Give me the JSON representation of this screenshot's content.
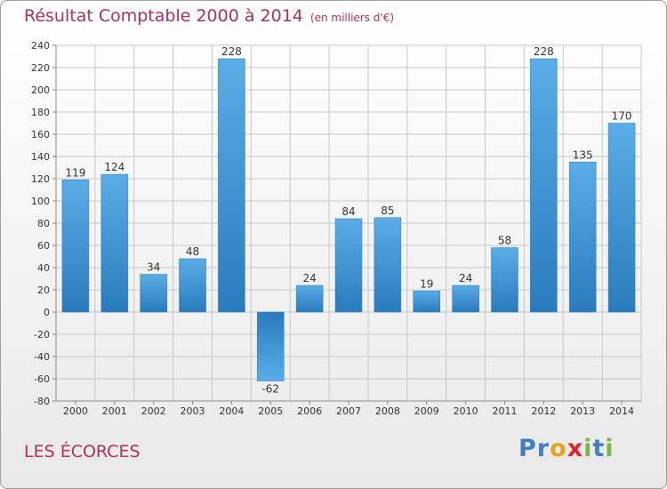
{
  "chart_data": {
    "type": "bar",
    "title": "Résultat Comptable 2000 à 2014",
    "unit_label": "(en milliers d'€)",
    "categories": [
      "2000",
      "2001",
      "2002",
      "2003",
      "2004",
      "2005",
      "2006",
      "2007",
      "2008",
      "2009",
      "2010",
      "2011",
      "2012",
      "2013",
      "2014"
    ],
    "values": [
      119,
      124,
      34,
      48,
      228,
      -62,
      24,
      84,
      85,
      19,
      24,
      58,
      228,
      135,
      170
    ],
    "ylim": [
      -80,
      240
    ],
    "ystep": 20,
    "xlabel": "",
    "ylabel": "",
    "grid": true
  },
  "commune": "LES ÉCORCES",
  "logo": {
    "letters": [
      "P",
      "r",
      "o",
      "x",
      "i",
      "t",
      "i"
    ]
  },
  "colors": {
    "bar_light": "#5aade6",
    "bar_dark": "#2a7bbd",
    "grid": "#c8c8c8",
    "title": "#b0305a",
    "logo": [
      "#3f7fc4",
      "#3f7fc4",
      "#e8a21c",
      "#e0242a",
      "#7ab648",
      "#3f7fc4",
      "#7ab648"
    ]
  }
}
